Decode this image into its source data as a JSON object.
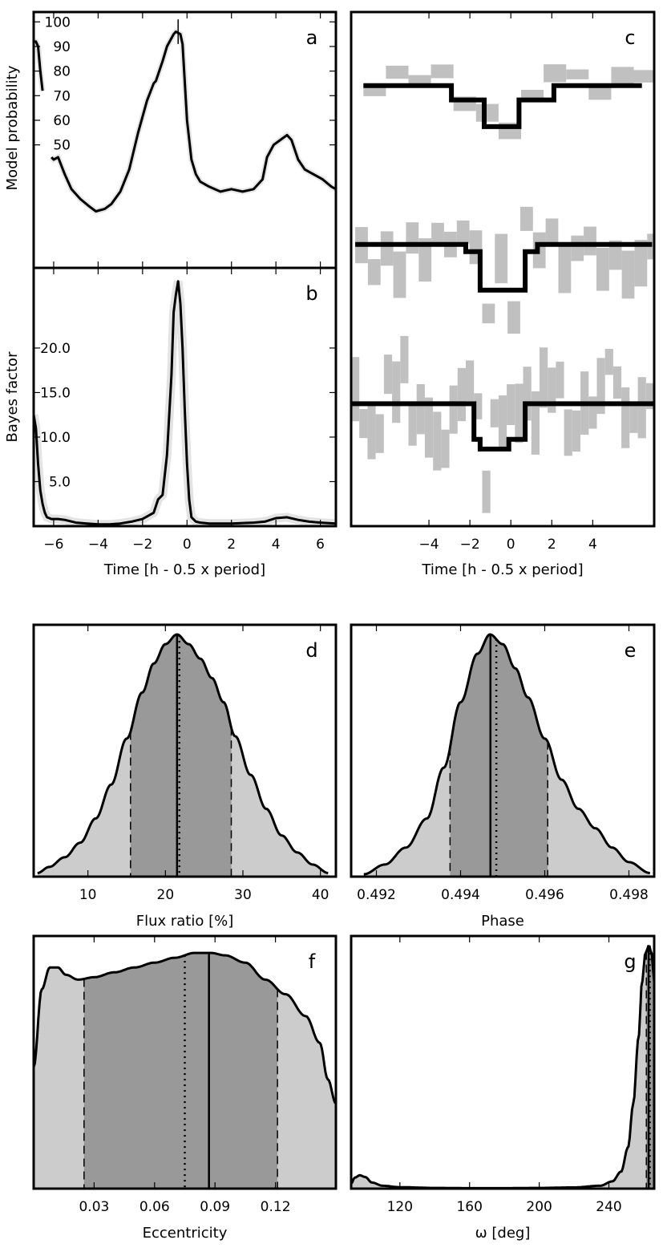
{
  "figure": {
    "panels": [
      {
        "id": "a",
        "label": "a"
      },
      {
        "id": "b",
        "label": "b"
      },
      {
        "id": "c",
        "label": "c"
      },
      {
        "id": "d",
        "label": "d"
      },
      {
        "id": "e",
        "label": "e"
      },
      {
        "id": "f",
        "label": "f"
      },
      {
        "id": "g",
        "label": "g"
      }
    ]
  },
  "chart_data": [
    {
      "panel": "a",
      "type": "line",
      "ylabel": "Model probability",
      "xlim": [
        -6.9,
        6.7
      ],
      "ylim": [
        0,
        104
      ],
      "yticks": [
        50,
        60,
        70,
        80,
        90,
        100
      ],
      "ytick_labels": [
        "50",
        "60",
        "70",
        "80",
        "90",
        "100"
      ],
      "marker_x": -0.4,
      "series_x": [
        -6.9,
        -6.8,
        -6.7,
        -6.6,
        -6.5,
        -6.3,
        -6.1,
        -6.0,
        -5.8,
        -5.5,
        -5.2,
        -4.8,
        -4.4,
        -4.1,
        -3.7,
        -3.4,
        -3.0,
        -2.6,
        -2.2,
        -1.8,
        -1.5,
        -1.4,
        -1.1,
        -0.9,
        -0.6,
        -0.5,
        -0.3,
        -0.2,
        0.0,
        0.2,
        0.4,
        0.6,
        1.0,
        1.5,
        2.0,
        2.5,
        3.0,
        3.4,
        3.6,
        3.9,
        4.2,
        4.5,
        4.7,
        5.0,
        5.3,
        5.7,
        6.1,
        6.5,
        6.7
      ],
      "series_y": [
        92,
        92,
        90,
        80,
        72,
        null,
        45,
        44,
        45,
        38,
        32,
        28,
        25,
        23,
        24,
        26,
        31,
        40,
        55,
        68,
        75,
        76,
        84,
        90,
        95,
        96,
        95,
        91,
        60,
        44,
        38,
        35,
        33,
        31,
        32,
        31,
        32,
        36,
        45,
        50,
        52,
        54,
        52,
        44,
        40,
        38,
        36,
        33,
        32
      ]
    },
    {
      "panel": "b",
      "type": "line",
      "ylabel": "Bayes factor",
      "xlabel": "Time [h - 0.5 x period]",
      "xlim": [
        -6.9,
        6.7
      ],
      "ylim": [
        0,
        29
      ],
      "xticks": [
        -6,
        -4,
        -2,
        0,
        2,
        4,
        6
      ],
      "xtick_labels": [
        "−6",
        "−4",
        "−2",
        "0",
        "2",
        "4",
        "6"
      ],
      "yticks": [
        5,
        10,
        15,
        20
      ],
      "ytick_labels": [
        "5.0",
        "10.0",
        "15.0",
        "20.0"
      ],
      "series_x": [
        -6.9,
        -6.8,
        -6.7,
        -6.6,
        -6.5,
        -6.4,
        -6.3,
        -6.1,
        -5.8,
        -5.5,
        -5.0,
        -4.5,
        -4.0,
        -3.5,
        -3.0,
        -2.5,
        -2.0,
        -1.5,
        -1.3,
        -1.1,
        -0.9,
        -0.7,
        -0.6,
        -0.5,
        -0.4,
        -0.3,
        -0.2,
        -0.1,
        0.0,
        0.1,
        0.2,
        0.4,
        0.6,
        1.0,
        2.0,
        3.0,
        3.5,
        4.0,
        4.5,
        5.0,
        5.5,
        6.0,
        6.7
      ],
      "series_y": [
        12.5,
        11,
        7,
        4,
        2.5,
        1.5,
        1,
        0.8,
        0.8,
        0.7,
        0.4,
        0.3,
        0.2,
        0.2,
        0.3,
        0.5,
        0.8,
        1.5,
        3,
        3.5,
        8,
        17,
        24,
        26,
        27.5,
        25,
        20,
        13,
        7,
        3,
        1,
        0.5,
        0.4,
        0.3,
        0.3,
        0.4,
        0.5,
        0.9,
        1,
        0.7,
        0.5,
        0.4,
        0.3
      ]
    },
    {
      "panel": "c",
      "type": "line",
      "xlabel": "Time [h - 0.5 x period]",
      "xlim": [
        -7.8,
        7.0
      ],
      "ylim": [
        0,
        100
      ],
      "xticks": [
        -4,
        -2,
        0,
        2,
        4
      ],
      "xtick_labels": [
        "−4",
        "−2",
        "0",
        "2",
        "4"
      ],
      "series": [
        {
          "name": "top model",
          "x": [
            -7.2,
            -2.9,
            -2.9,
            -1.3,
            -1.3,
            0.4,
            0.4,
            2.1,
            2.1,
            6.4
          ],
          "y": [
            85.7,
            85.7,
            82.9,
            82.9,
            77.7,
            77.7,
            82.9,
            82.9,
            85.7,
            85.7
          ]
        },
        {
          "name": "middle model",
          "x": [
            -7.6,
            -2.2,
            -2.2,
            -1.5,
            -1.5,
            0.7,
            0.7,
            1.3,
            1.3,
            6.9
          ],
          "y": [
            54.8,
            54.8,
            53.4,
            53.4,
            45.9,
            45.9,
            53.4,
            53.4,
            54.8,
            54.8
          ]
        },
        {
          "name": "bottom model",
          "x": [
            -7.8,
            -1.8,
            -1.8,
            -1.5,
            -1.5,
            -0.1,
            -0.1,
            0.7,
            0.7,
            7.0
          ],
          "y": [
            23.8,
            23.8,
            16.9,
            16.9,
            15.0,
            15.0,
            16.9,
            16.9,
            23.8,
            23.8
          ]
        }
      ]
    },
    {
      "panel": "d",
      "type": "area",
      "xlabel": "Flux ratio [%]",
      "xlim": [
        3,
        42
      ],
      "xticks": [
        10,
        20,
        30,
        40
      ],
      "xtick_labels": [
        "10",
        "20",
        "30",
        "40"
      ],
      "x": [
        3.5,
        5,
        7,
        9,
        11,
        13,
        15,
        17,
        18.5,
        20,
        21.5,
        23,
        24.5,
        26,
        27.5,
        29,
        31,
        33,
        35,
        37,
        39,
        41
      ],
      "density": [
        0.015,
        0.04,
        0.08,
        0.14,
        0.24,
        0.38,
        0.57,
        0.76,
        0.88,
        0.96,
        1.0,
        0.96,
        0.9,
        0.82,
        0.72,
        0.58,
        0.42,
        0.28,
        0.17,
        0.1,
        0.05,
        0.015
      ],
      "ci68": [
        15.5,
        28.5
      ],
      "median": 21.8,
      "mode": 21.5
    },
    {
      "panel": "e",
      "type": "area",
      "xlabel": "Phase",
      "xlim": [
        0.4914,
        0.4986
      ],
      "xticks": [
        0.492,
        0.494,
        0.496,
        0.498
      ],
      "xtick_labels": [
        "0.492",
        "0.494",
        "0.496",
        "0.498"
      ],
      "x": [
        0.4917,
        0.4922,
        0.4927,
        0.4932,
        0.4936,
        0.494,
        0.4944,
        0.4947,
        0.495,
        0.4953,
        0.4956,
        0.496,
        0.4964,
        0.4968,
        0.4972,
        0.4976,
        0.498,
        0.4985
      ],
      "density": [
        0.01,
        0.05,
        0.12,
        0.24,
        0.45,
        0.72,
        0.92,
        1.0,
        0.96,
        0.86,
        0.74,
        0.57,
        0.4,
        0.28,
        0.2,
        0.12,
        0.06,
        0.015
      ],
      "ci68": [
        0.49375,
        0.49607
      ],
      "median": 0.49485,
      "mode": 0.49471
    },
    {
      "panel": "f",
      "type": "area",
      "xlabel": "Eccentricity",
      "xlim": [
        0.0,
        0.15
      ],
      "xticks": [
        0.03,
        0.06,
        0.09,
        0.12
      ],
      "xtick_labels": [
        "0.03",
        "0.06",
        "0.09",
        "0.12"
      ],
      "x": [
        0,
        0.004,
        0.008,
        0.012,
        0.016,
        0.022,
        0.03,
        0.04,
        0.05,
        0.06,
        0.07,
        0.08,
        0.088,
        0.095,
        0.105,
        0.115,
        0.125,
        0.135,
        0.142,
        0.146,
        0.15
      ],
      "density": [
        0.5,
        0.82,
        0.91,
        0.91,
        0.88,
        0.86,
        0.87,
        0.89,
        0.91,
        0.93,
        0.95,
        0.97,
        0.97,
        0.96,
        0.93,
        0.86,
        0.8,
        0.71,
        0.6,
        0.45,
        0.35
      ],
      "ci68": [
        0.025,
        0.121
      ],
      "median": 0.075,
      "mode": 0.087
    },
    {
      "panel": "g",
      "type": "area",
      "xlabel": "ω [deg]",
      "xlim": [
        92,
        266
      ],
      "xticks": [
        120,
        160,
        200,
        240
      ],
      "xtick_labels": [
        "120",
        "160",
        "200",
        "240"
      ],
      "x": [
        92,
        94,
        97,
        100,
        104,
        110,
        120,
        140,
        160,
        180,
        200,
        220,
        235,
        242,
        247,
        251,
        254,
        257,
        259,
        261,
        263,
        264.5,
        265.5,
        266
      ],
      "density": [
        0.02,
        0.045,
        0.055,
        0.048,
        0.025,
        0.012,
        0.006,
        0.003,
        0.002,
        0.002,
        0.003,
        0.005,
        0.012,
        0.03,
        0.07,
        0.17,
        0.35,
        0.62,
        0.85,
        0.97,
        1.0,
        0.97,
        0.9,
        0.85
      ],
      "ci68": [
        261.5,
        266
      ],
      "median": 263.5,
      "mode": 262.8
    }
  ]
}
